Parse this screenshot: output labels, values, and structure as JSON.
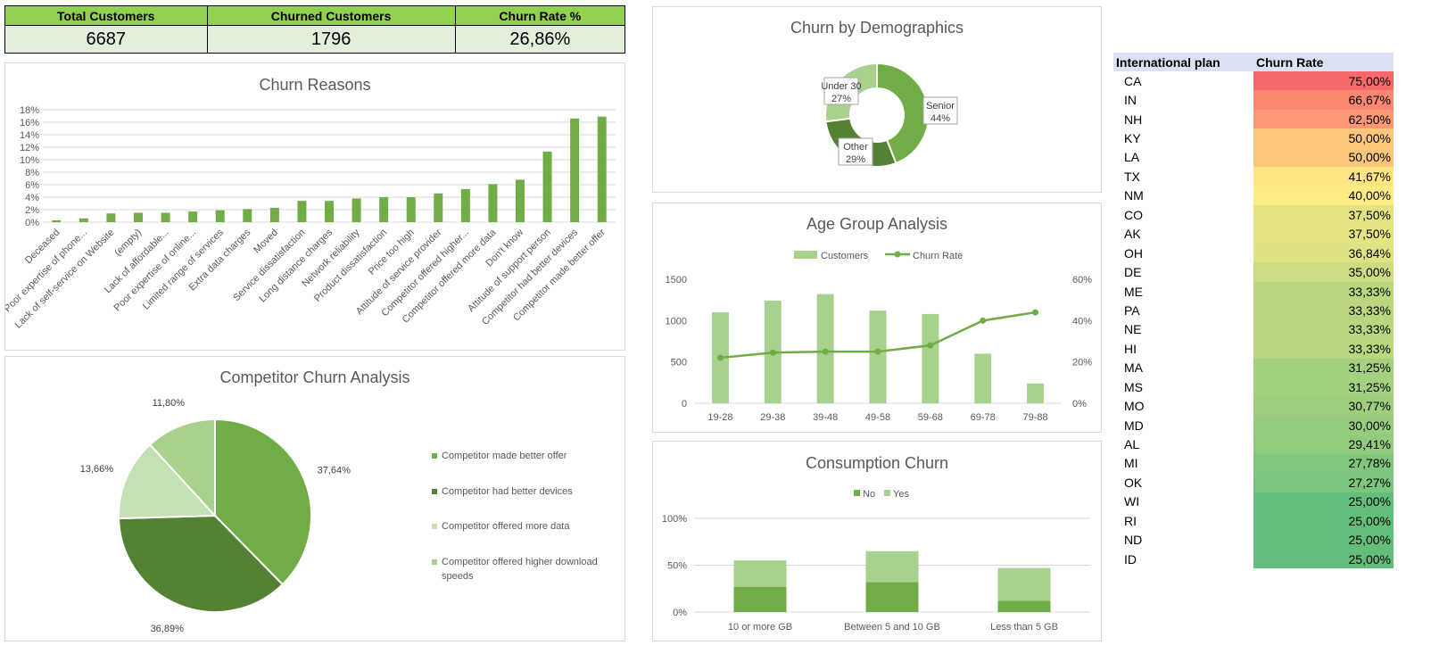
{
  "kpis": {
    "total_label": "Total Customers",
    "total_value": "6687",
    "churned_label": "Churned Customers",
    "churned_value": "1796",
    "rate_label": "Churn Rate %",
    "rate_value": "26,86%"
  },
  "chart_data": [
    {
      "id": "churn_reasons",
      "type": "bar",
      "title": "Churn Reasons",
      "categories": [
        "Deceased",
        "Poor expertise of phone...",
        "Lack of self-service on Website",
        "(empty)",
        "Lack of affordable...",
        "Poor expertise of online...",
        "Limited range of services",
        "Extra data charges",
        "Moved",
        "Service dissatisfaction",
        "Long distance charges",
        "Network reliability",
        "Product dissatisfaction",
        "Price too high",
        "Attitude of service provider",
        "Competitor offered higher...",
        "Competitor offered more data",
        "Don't know",
        "Attitude of support person",
        "Competitor had better devices",
        "Competitor made better offer"
      ],
      "values": [
        0.3,
        0.6,
        1.4,
        1.5,
        1.5,
        1.7,
        1.9,
        2.1,
        2.3,
        3.4,
        3.4,
        3.8,
        4.0,
        4.0,
        4.6,
        5.3,
        6.1,
        6.8,
        11.3,
        16.6,
        16.9
      ],
      "ylim": [
        0,
        18
      ],
      "yticks": [
        "0%",
        "2%",
        "4%",
        "6%",
        "8%",
        "10%",
        "12%",
        "14%",
        "16%",
        "18%"
      ],
      "color": "#70ad47",
      "grid": true
    },
    {
      "id": "competitor_churn",
      "type": "pie",
      "title": "Competitor Churn Analysis",
      "labels": [
        "Competitor made better offer",
        "Competitor had better devices",
        "Competitor offered more data",
        "Competitor offered higher download speeds"
      ],
      "values": [
        37.64,
        36.89,
        13.66,
        11.8
      ],
      "value_labels": [
        "37,64%",
        "36,89%",
        "13,66%",
        "11,80%"
      ],
      "colors": [
        "#70ad47",
        "#548235",
        "#c5e0b4",
        "#a9d18e"
      ],
      "legend": "right"
    },
    {
      "id": "demographics",
      "type": "pie",
      "subtype": "donut",
      "title": "Churn by Demographics",
      "labels": [
        "Senior",
        "Other",
        "Under 30"
      ],
      "values": [
        44,
        29,
        27
      ],
      "value_labels": [
        "44%",
        "29%",
        "27%"
      ],
      "colors": [
        "#70ad47",
        "#548235",
        "#a9d18e"
      ]
    },
    {
      "id": "age_groups",
      "type": "bar",
      "title": "Age Group Analysis",
      "categories": [
        "19-28",
        "29-38",
        "39-48",
        "49-58",
        "59-68",
        "69-78",
        "79-88"
      ],
      "series": [
        {
          "name": "Customers",
          "type": "bar",
          "axis": "left",
          "values": [
            1100,
            1240,
            1320,
            1120,
            1080,
            600,
            240
          ]
        },
        {
          "name": "Churn Rate",
          "type": "line",
          "axis": "right",
          "values": [
            22,
            24.5,
            25,
            25,
            28,
            40,
            44
          ]
        }
      ],
      "ylim": [
        0,
        1500
      ],
      "y2lim": [
        0,
        60
      ],
      "yticks": [
        "0",
        "500",
        "1000",
        "1500"
      ],
      "y2ticks": [
        "0%",
        "20%",
        "40%",
        "60%"
      ],
      "colors": {
        "Customers": "#a9d18e",
        "Churn Rate": "#70ad47"
      },
      "legend": "top"
    },
    {
      "id": "consumption",
      "type": "bar",
      "subtype": "stacked",
      "title": "Consumption Churn",
      "categories": [
        "10 or more GB",
        "Between 5 and 10 GB",
        "Less than 5 GB"
      ],
      "series": [
        {
          "name": "No",
          "values": [
            27,
            32,
            12
          ]
        },
        {
          "name": "Yes",
          "values": [
            28,
            33,
            35
          ]
        }
      ],
      "ylim": [
        0,
        100
      ],
      "yticks": [
        "0%",
        "50%",
        "100%"
      ],
      "colors": {
        "No": "#70ad47",
        "Yes": "#a9d18e"
      },
      "legend": "top"
    },
    {
      "id": "international_plan",
      "type": "table",
      "headers": [
        "International plan",
        "Churn Rate"
      ],
      "rows": [
        [
          "CA",
          "75,00%"
        ],
        [
          "IN",
          "66,67%"
        ],
        [
          "NH",
          "62,50%"
        ],
        [
          "KY",
          "50,00%"
        ],
        [
          "LA",
          "50,00%"
        ],
        [
          "TX",
          "41,67%"
        ],
        [
          "NM",
          "40,00%"
        ],
        [
          "CO",
          "37,50%"
        ],
        [
          "AK",
          "37,50%"
        ],
        [
          "OH",
          "36,84%"
        ],
        [
          "DE",
          "35,00%"
        ],
        [
          "ME",
          "33,33%"
        ],
        [
          "PA",
          "33,33%"
        ],
        [
          "NE",
          "33,33%"
        ],
        [
          "HI",
          "33,33%"
        ],
        [
          "MA",
          "31,25%"
        ],
        [
          "MS",
          "31,25%"
        ],
        [
          "MO",
          "30,77%"
        ],
        [
          "MD",
          "30,00%"
        ],
        [
          "AL",
          "29,41%"
        ],
        [
          "MI",
          "27,78%"
        ],
        [
          "OK",
          "27,27%"
        ],
        [
          "WI",
          "25,00%"
        ],
        [
          "RI",
          "25,00%"
        ],
        [
          "ND",
          "25,00%"
        ],
        [
          "ID",
          "25,00%"
        ]
      ],
      "values": [
        75.0,
        66.67,
        62.5,
        50.0,
        50.0,
        41.67,
        40.0,
        37.5,
        37.5,
        36.84,
        35.0,
        33.33,
        33.33,
        33.33,
        33.33,
        31.25,
        31.25,
        30.77,
        30.0,
        29.41,
        27.78,
        27.27,
        25.0,
        25.0,
        25.0,
        25.0
      ],
      "color_scale": [
        "#63be7b",
        "#ffeb84",
        "#f8696b"
      ]
    }
  ]
}
